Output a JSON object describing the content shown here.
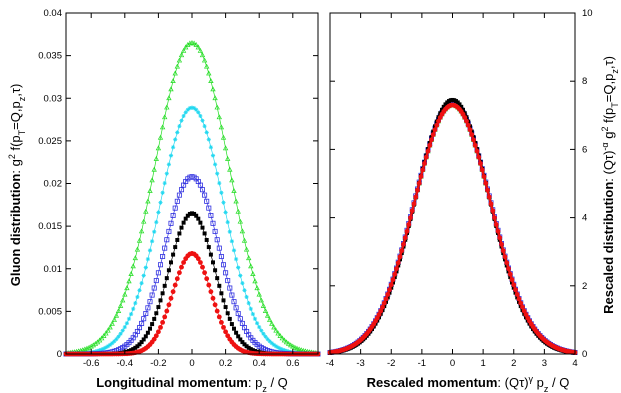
{
  "colors": {
    "green": "#22dd22",
    "cyan": "#22d8f0",
    "blue": "#3030e0",
    "black": "#000000",
    "red": "#ee1111"
  },
  "chart_data": [
    {
      "type": "scatter",
      "title": "",
      "xlabel": {
        "bold": "Longitudinal momentum",
        "rest": ": p",
        "sub": "z",
        "tail": " / Q"
      },
      "ylabel": {
        "bold": "Gluon distribution",
        "rest": ": g",
        "sup": "2",
        "tail": " f(p",
        "sub": "T",
        "tail2": "=Q,p",
        "sub2": "z",
        "tail3": ",τ)"
      },
      "xlim": [
        -0.75,
        0.75
      ],
      "ylim": [
        0,
        0.04
      ],
      "xticks": [
        -0.6,
        -0.4,
        -0.2,
        0,
        0.2,
        0.4,
        0.6
      ],
      "xtick_labels": [
        "-0.6",
        "-0.4",
        "-0.2",
        "0",
        "0.2",
        "0.4",
        "0.6"
      ],
      "yticks": [
        0,
        0.005,
        0.01,
        0.015,
        0.02,
        0.025,
        0.03,
        0.035,
        0.04
      ],
      "ytick_labels": [
        "0",
        "0.005",
        "0.01",
        "0.015",
        "0.02",
        "0.025",
        "0.03",
        "0.035",
        "0.04"
      ],
      "grid": false,
      "series": [
        {
          "color": "green",
          "marker": "triangle",
          "peak": 0.0365,
          "width": 0.22
        },
        {
          "color": "cyan",
          "marker": "star",
          "peak": 0.0289,
          "width": 0.19
        },
        {
          "color": "blue",
          "marker": "open-square",
          "peak": 0.0208,
          "width": 0.16
        },
        {
          "color": "black",
          "marker": "filled-square",
          "peak": 0.0165,
          "width": 0.135
        },
        {
          "color": "red",
          "marker": "filled-circle",
          "peak": 0.0118,
          "width": 0.115
        }
      ]
    },
    {
      "type": "scatter",
      "title": "",
      "xlabel": {
        "bold": "Rescaled momentum",
        "rest": ": (Qτ)",
        "sup": "γ",
        "tail": " p",
        "sub": "z",
        "tail2": " / Q"
      },
      "ylabel": {
        "bold": "Rescaled distribution",
        "rest": ": (Qτ)",
        "sup": "-α",
        "tail": " g",
        "sup2": "2",
        "tail2": " f(p",
        "sub": "T",
        "tail3": "=Q,p",
        "sub2": "z",
        "tail4": ",τ)"
      },
      "xlim": [
        -4,
        4
      ],
      "ylim": [
        0,
        10
      ],
      "xticks": [
        -4,
        -3,
        -2,
        -1,
        0,
        1,
        2,
        3,
        4
      ],
      "xtick_labels": [
        "-4",
        "-3",
        "-2",
        "-1",
        "0",
        "1",
        "2",
        "3",
        "4"
      ],
      "yticks": [
        0,
        2,
        4,
        6,
        8,
        10
      ],
      "ytick_labels": [
        "0",
        "2",
        "4",
        "6",
        "8",
        "10"
      ],
      "grid": false,
      "series": [
        {
          "color": "green",
          "marker": "triangle",
          "peak": 7.3,
          "width": 1.25
        },
        {
          "color": "cyan",
          "marker": "star",
          "peak": 7.3,
          "width": 1.25
        },
        {
          "color": "blue",
          "marker": "open-square",
          "peak": 7.35,
          "width": 1.25
        },
        {
          "color": "black",
          "marker": "filled-square",
          "peak": 7.45,
          "width": 1.22
        },
        {
          "color": "red",
          "marker": "filled-circle",
          "peak": 7.3,
          "width": 1.25
        }
      ]
    }
  ]
}
